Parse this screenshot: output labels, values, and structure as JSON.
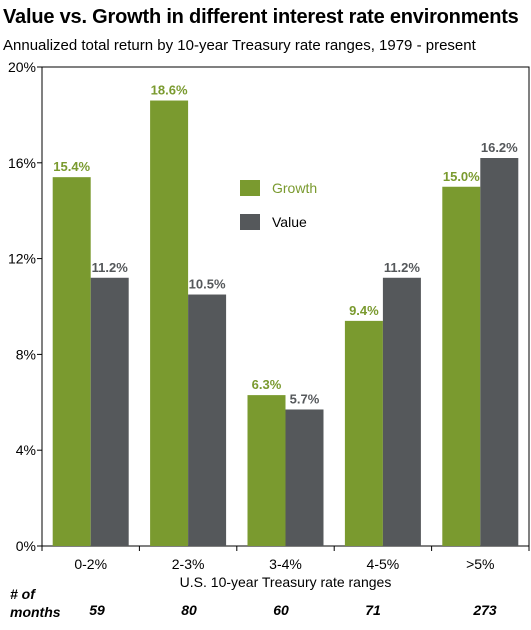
{
  "chart_data": {
    "type": "bar",
    "title": "Value vs. Growth in different interest rate environments",
    "subtitle": "Annualized total return by 10-year Treasury rate ranges, 1979 - present",
    "xlabel": "U.S. 10-year Treasury rate ranges",
    "ylabel": "",
    "ylim": [
      0,
      20
    ],
    "yticks": [
      "0%",
      "4%",
      "8%",
      "12%",
      "16%",
      "20%"
    ],
    "categories": [
      "0-2%",
      "2-3%",
      "3-4%",
      "4-5%",
      ">5%"
    ],
    "series": [
      {
        "name": "Growth",
        "color": "#7a9a2f",
        "values": [
          15.4,
          18.6,
          6.3,
          9.4,
          15.0
        ],
        "labels": [
          "15.4%",
          "18.6%",
          "6.3%",
          "9.4%",
          "15.0%"
        ]
      },
      {
        "name": "Value",
        "color": "#55585b",
        "values": [
          11.2,
          10.5,
          5.7,
          11.2,
          16.2
        ],
        "labels": [
          "11.2%",
          "10.5%",
          "5.7%",
          "11.2%",
          "16.2%"
        ]
      }
    ],
    "legend_position": "upper-middle",
    "grid": false
  },
  "months": {
    "header_line1": "# of",
    "header_line2": "months",
    "values": [
      "59",
      "80",
      "60",
      "71",
      "273"
    ]
  }
}
